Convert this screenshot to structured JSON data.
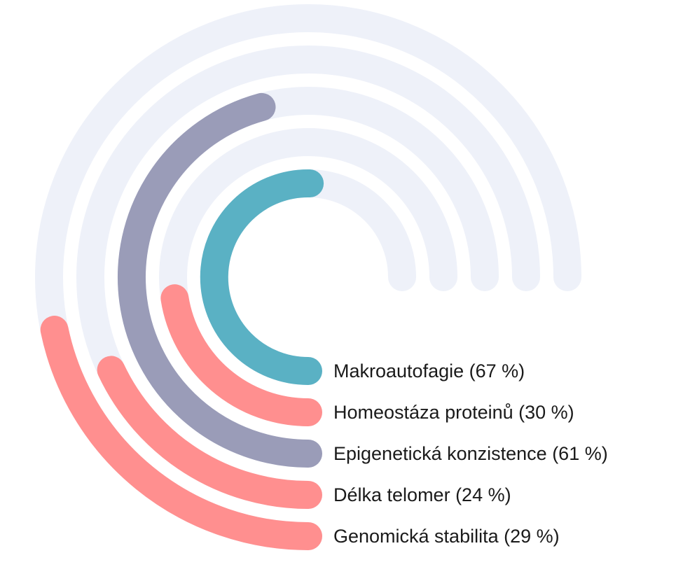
{
  "chart_data": {
    "type": "radial-bar",
    "max_sweep_degrees": 270,
    "track_color": "#eef1f9",
    "series": [
      {
        "name": "Makroautofagie (67 %)",
        "value": 67,
        "color": "#5ab1c4"
      },
      {
        "name": "Homeostáza proteinů (30 %)",
        "value": 30,
        "color": "#ff8f8f"
      },
      {
        "name": "Epigenetická konzistence (61 %)",
        "value": 61,
        "color": "#9a9cb8"
      },
      {
        "name": "Délka telomer (24 %)",
        "value": 24,
        "color": "#ff8f8f"
      },
      {
        "name": "Genomická stabilita (29 %)",
        "value": 29,
        "color": "#ff8f8f"
      }
    ]
  }
}
